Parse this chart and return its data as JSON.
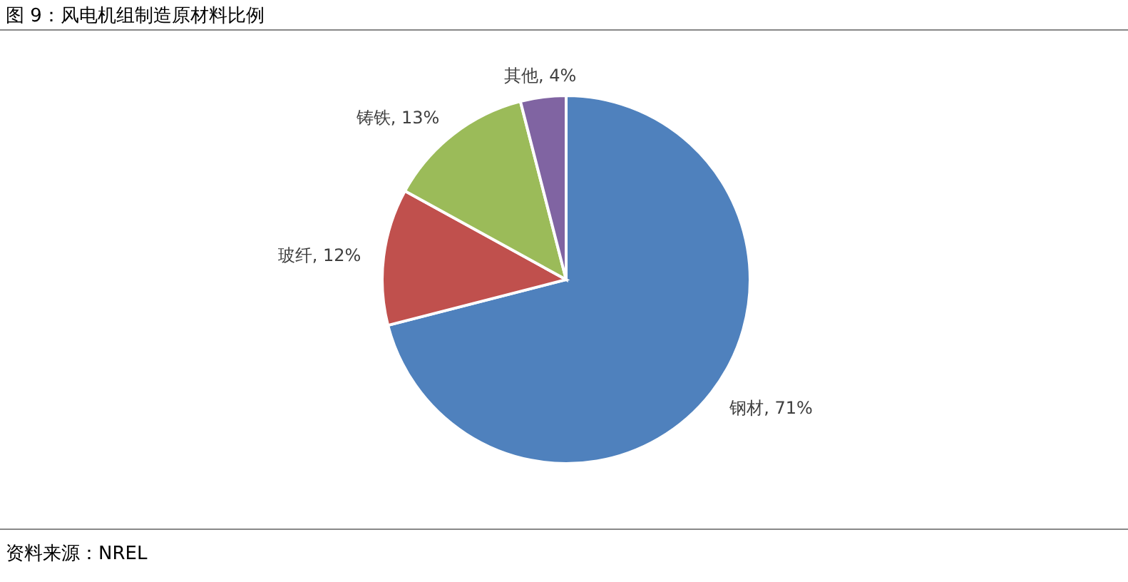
{
  "chart_data": {
    "type": "pie",
    "title": "图 9：风电机组制造原材料比例",
    "categories": [
      "钢材",
      "玻纤",
      "铸铁",
      "其他"
    ],
    "values": [
      71,
      12,
      13,
      4
    ],
    "colors": [
      "#4f81bd",
      "#c0504d",
      "#9bbb59",
      "#8064a2"
    ],
    "value_labels": [
      "71%",
      "12%",
      "13%",
      "4%"
    ],
    "annotations": [
      "资料来源：NREL"
    ],
    "legend": false
  }
}
